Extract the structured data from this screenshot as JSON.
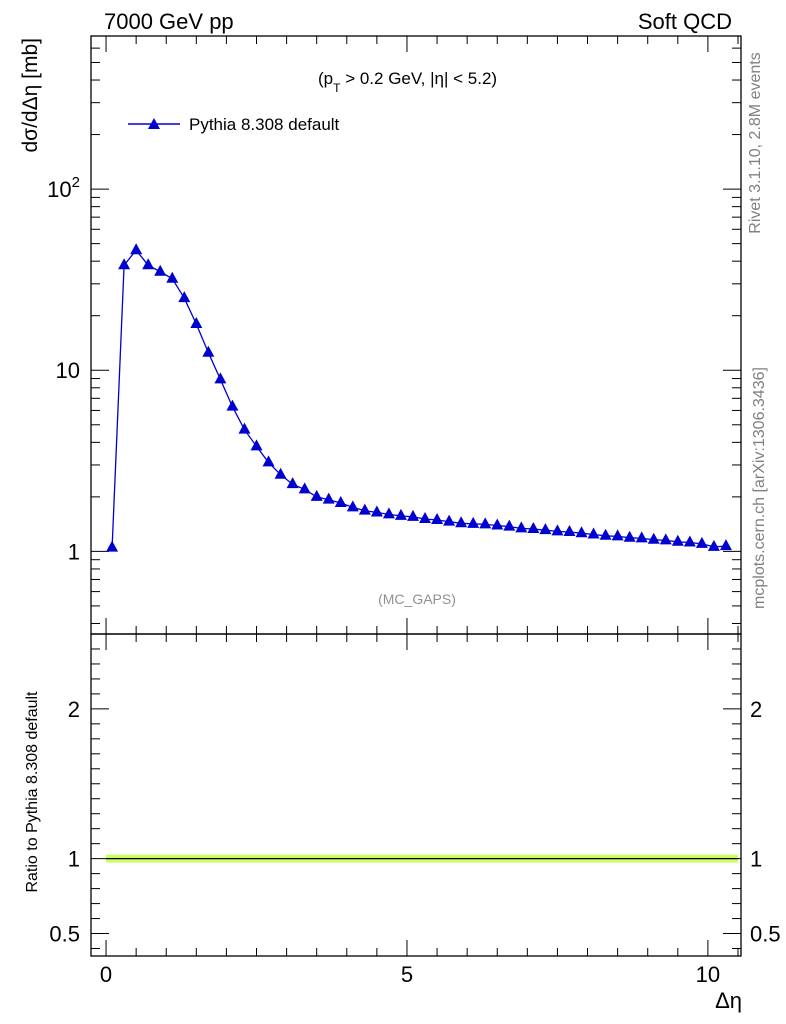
{
  "header": {
    "left": "7000 GeV pp",
    "right": "Soft QCD"
  },
  "chart_data": {
    "type": "line",
    "cut_label": {
      "open": "(p",
      "sub": "T",
      "rest": " > 0.2 GeV, |η| < 5.2)"
    },
    "legend": [
      "Pythia 8.308 default"
    ],
    "ylabel_main": "dσ/dΔη [mb]",
    "ylabel_ratio": "Ratio to Pythia 8.308 default",
    "xlabel": "Δη",
    "analysis_label": "(MC_GAPS)",
    "side_label_top": "Rivet 3.1.10,  2.8M events",
    "side_label_bottom": "mcplots.cern.ch [arXiv:1306.3436]",
    "yscale_main": "log",
    "ylim_main": [
      0.35,
      700
    ],
    "xlim": [
      -0.25,
      10.55
    ],
    "ylim_ratio": [
      0.35,
      2.5
    ],
    "x_ticks": [
      0,
      5,
      10
    ],
    "x_tick_labels": [
      "0",
      "5",
      "10"
    ],
    "y_ticks_main": [
      1,
      10,
      100
    ],
    "y_tick_labels_main": [
      "1",
      "10",
      "10^2"
    ],
    "y_ticks_ratio": [
      0.5,
      1,
      2
    ],
    "y_tick_labels_ratio": [
      "0.5",
      "1",
      "2"
    ],
    "series": [
      {
        "name": "Pythia 8.308 default",
        "color": "#0000d0",
        "marker": "triangle",
        "x": [
          0.1,
          0.3,
          0.5,
          0.7,
          0.9,
          1.1,
          1.3,
          1.5,
          1.7,
          1.9,
          2.1,
          2.3,
          2.5,
          2.7,
          2.9,
          3.1,
          3.3,
          3.5,
          3.7,
          3.9,
          4.1,
          4.3,
          4.5,
          4.7,
          4.9,
          5.1,
          5.3,
          5.5,
          5.7,
          5.9,
          6.1,
          6.3,
          6.5,
          6.7,
          6.9,
          7.1,
          7.3,
          7.5,
          7.7,
          7.9,
          8.1,
          8.3,
          8.5,
          8.7,
          8.9,
          9.1,
          9.3,
          9.5,
          9.7,
          9.9,
          10.1,
          10.3
        ],
        "values": [
          1.05,
          38,
          46,
          38,
          35,
          32,
          25,
          18,
          12.5,
          8.9,
          6.3,
          4.7,
          3.8,
          3.1,
          2.65,
          2.35,
          2.2,
          2.0,
          1.93,
          1.85,
          1.75,
          1.68,
          1.64,
          1.6,
          1.57,
          1.55,
          1.51,
          1.49,
          1.46,
          1.43,
          1.42,
          1.41,
          1.39,
          1.37,
          1.34,
          1.33,
          1.31,
          1.29,
          1.28,
          1.26,
          1.24,
          1.22,
          1.21,
          1.19,
          1.18,
          1.16,
          1.15,
          1.13,
          1.12,
          1.1,
          1.06,
          1.07
        ]
      }
    ],
    "ratio_series": [
      {
        "name": "Pythia 8.308 default",
        "color": "#000000",
        "band_color": "#ccff66",
        "x": [
          0.0,
          10.5
        ],
        "values": [
          1.0,
          1.0
        ]
      }
    ]
  }
}
